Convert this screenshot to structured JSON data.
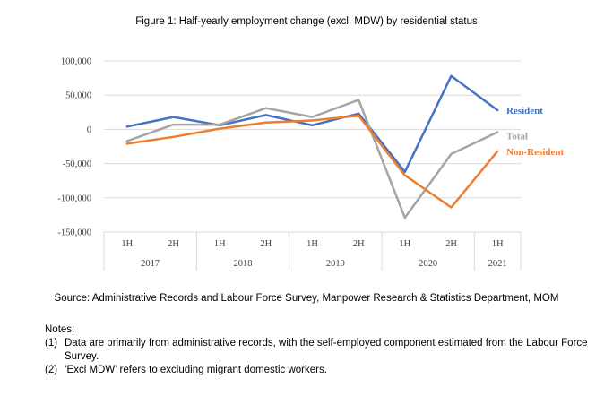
{
  "chart_data": {
    "type": "line",
    "title": "Figure 1: Half-yearly employment change (excl. MDW) by residential status",
    "x": [
      "1H",
      "2H",
      "1H",
      "2H",
      "1H",
      "2H",
      "1H",
      "2H",
      "1H"
    ],
    "years": [
      {
        "label": "2017",
        "span": 2
      },
      {
        "label": "2018",
        "span": 2
      },
      {
        "label": "2019",
        "span": 2
      },
      {
        "label": "2020",
        "span": 2
      },
      {
        "label": "2021",
        "span": 1
      }
    ],
    "y_ticks": [
      "100,000",
      "50,000",
      "0",
      "-50,000",
      "-100,000",
      "-150,000"
    ],
    "ylim": [
      -150000,
      100000
    ],
    "grid": true,
    "series": [
      {
        "name": "Resident",
        "color": "#4472C4",
        "values": [
          4000,
          18000,
          6000,
          21000,
          6000,
          23000,
          -62000,
          78000,
          28000
        ]
      },
      {
        "name": "Total",
        "color": "#A5A5A5",
        "values": [
          -17000,
          7000,
          7000,
          31000,
          18000,
          43000,
          -129000,
          -36000,
          -4000
        ]
      },
      {
        "name": "Non-Resident",
        "color": "#ED7D31",
        "values": [
          -21000,
          -11000,
          1000,
          10000,
          13000,
          20000,
          -67000,
          -114000,
          -32000
        ]
      }
    ]
  },
  "source": "Source: Administrative Records and Labour Force Survey, Manpower Research & Statistics Department, MOM",
  "notes_heading": "Notes:",
  "notes": [
    {
      "num": "(1)",
      "text": "Data are primarily from administrative records, with the self-employed component estimated from the Labour Force Survey."
    },
    {
      "num": "(2)",
      "text": "‘Excl MDW’ refers to excluding migrant domestic workers."
    }
  ]
}
